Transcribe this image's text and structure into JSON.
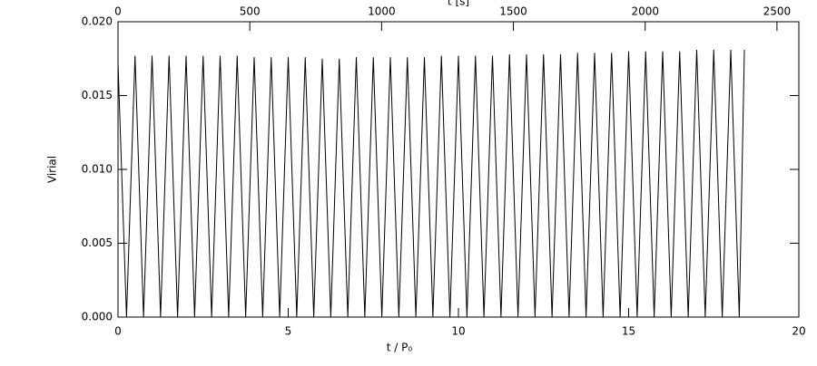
{
  "chart_data": {
    "type": "line",
    "xlabel": "t / P₀",
    "ylabel": "Virial",
    "x2label": "t [s]",
    "xlim": [
      0,
      20
    ],
    "xticks": [
      0,
      5,
      10,
      15,
      20
    ],
    "x2lim": [
      0,
      2583
    ],
    "x2ticks": [
      0,
      500,
      1000,
      1500,
      2000,
      2500
    ],
    "ylim": [
      0,
      0.02
    ],
    "yticks": [
      {
        "value": 0,
        "label": "0.000"
      },
      {
        "value": 0.005,
        "label": "0.005"
      },
      {
        "value": 0.01,
        "label": "0.010"
      },
      {
        "value": 0.015,
        "label": "0.015"
      },
      {
        "value": 0.02,
        "label": "0.020"
      }
    ],
    "color": "#000000",
    "x": [
      0,
      0.25,
      0.5,
      0.75,
      1,
      1.25,
      1.5,
      1.75,
      2,
      2.25,
      2.5,
      2.75,
      3,
      3.25,
      3.5,
      3.75,
      4,
      4.25,
      4.5,
      4.75,
      5,
      5.25,
      5.5,
      5.75,
      6,
      6.25,
      6.5,
      6.75,
      7,
      7.25,
      7.5,
      7.75,
      8,
      8.25,
      8.5,
      8.75,
      9,
      9.25,
      9.5,
      9.75,
      10,
      10.25,
      10.5,
      10.75,
      11,
      11.25,
      11.5,
      11.75,
      12,
      12.25,
      12.5,
      12.75,
      13,
      13.25,
      13.5,
      13.75,
      14,
      14.25,
      14.5,
      14.75,
      15,
      15.25,
      15.5,
      15.75,
      16,
      16.25,
      16.5,
      16.75,
      17,
      17.25,
      17.5,
      17.75,
      18,
      18.25,
      18.4
    ],
    "values": [
      0.0172,
      0,
      0.0177,
      0,
      0.0177,
      0,
      0.0177,
      0,
      0.0177,
      0,
      0.0177,
      0,
      0.0177,
      0,
      0.0177,
      0,
      0.0176,
      0,
      0.0176,
      0,
      0.0176,
      0,
      0.0176,
      0,
      0.0175,
      0,
      0.0175,
      0,
      0.0176,
      0,
      0.0176,
      0,
      0.0176,
      0,
      0.0176,
      0,
      0.0176,
      0,
      0.0177,
      0,
      0.0177,
      0,
      0.0177,
      0,
      0.0177,
      0,
      0.0178,
      0,
      0.0178,
      0,
      0.0178,
      0,
      0.0178,
      0,
      0.0179,
      0,
      0.0179,
      0,
      0.0179,
      0,
      0.018,
      0,
      0.018,
      0,
      0.018,
      0,
      0.018,
      0,
      0.0181,
      0,
      0.0181,
      0,
      0.0181,
      0,
      0.0181
    ]
  }
}
